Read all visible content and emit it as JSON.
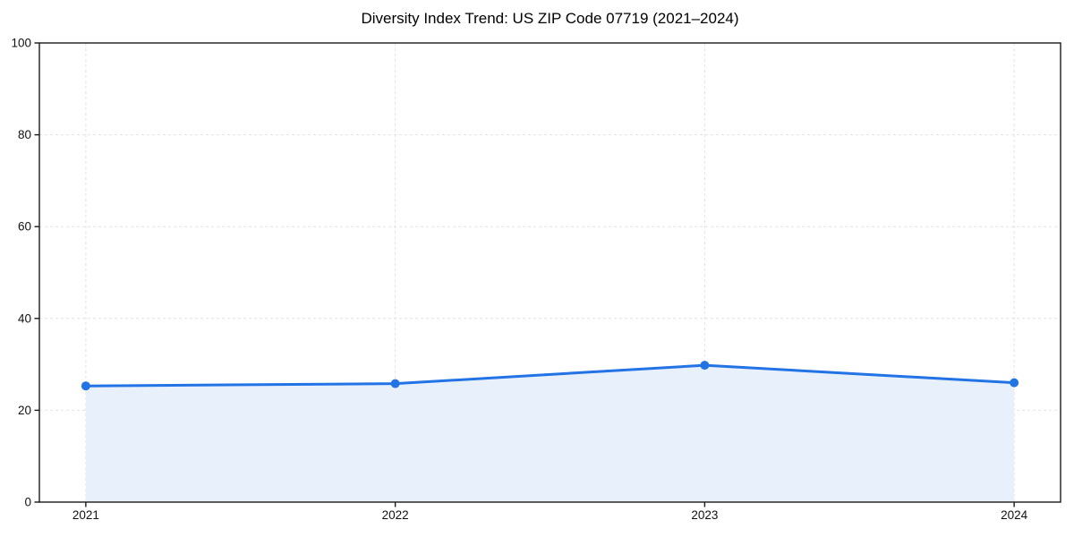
{
  "chart_data": {
    "type": "area",
    "title": "Diversity Index Trend: US ZIP Code 07719 (2021–2024)",
    "x": [
      2021,
      2022,
      2023,
      2024
    ],
    "series": [
      {
        "name": "Diversity Index",
        "values": [
          25.3,
          25.8,
          29.8,
          26.0
        ]
      }
    ],
    "xlabel": "",
    "ylabel": "",
    "xlim": [
      2020.85,
      2024.15
    ],
    "ylim": [
      0,
      100
    ],
    "xticks": [
      2021,
      2022,
      2023,
      2024
    ],
    "yticks": [
      0,
      20,
      40,
      60,
      80,
      100
    ],
    "xtick_labels": [
      "2021",
      "2022",
      "2023",
      "2024"
    ],
    "ytick_labels": [
      "0",
      "20",
      "40",
      "60",
      "80",
      "100"
    ],
    "grid": true,
    "grid_axes": "both",
    "grid_line_style": "dashed",
    "legend_position": "none",
    "marker": "circle",
    "colors": {
      "line": "#2273e6",
      "marker": "#2273e6",
      "fill": "#e8f0fc",
      "grid": "#e2e2e2",
      "axis": "#1a1a1a",
      "text": "#111111",
      "background": "#ffffff"
    }
  }
}
